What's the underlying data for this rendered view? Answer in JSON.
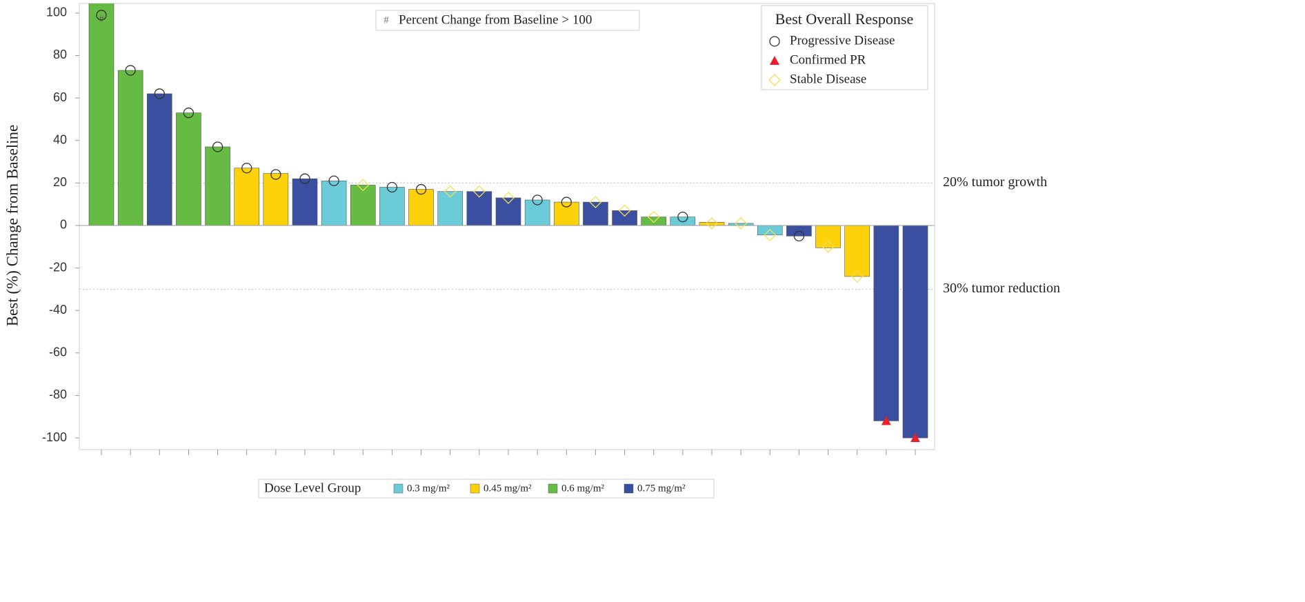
{
  "chart_data": {
    "type": "bar",
    "y_label": "Best (%) Change from Baseline",
    "ylim": [
      -105.5,
      104.5
    ],
    "yticks": [
      -100,
      -80,
      -60,
      -40,
      -20,
      0,
      20,
      40,
      60,
      80,
      100
    ],
    "categories": [
      null,
      null,
      null,
      null,
      null,
      null,
      null,
      null,
      null,
      null,
      null,
      null,
      null,
      null,
      null,
      null,
      null,
      null,
      null,
      null,
      null,
      null,
      null,
      null,
      null,
      null,
      null,
      null,
      null
    ],
    "legend_title": "Dose Level Group",
    "series": [
      {
        "name": "0.3 mg/m²",
        "color": "#6ccbd9",
        "values": [
          null,
          null,
          null,
          null,
          null,
          null,
          null,
          null,
          21,
          null,
          18,
          null,
          16,
          null,
          null,
          12,
          null,
          null,
          null,
          null,
          4,
          null,
          1,
          -4.5,
          null,
          null,
          null,
          null,
          null
        ]
      },
      {
        "name": "0.45 mg/m²",
        "color": "#fdd20a",
        "values": [
          null,
          null,
          null,
          null,
          null,
          27,
          24.5,
          null,
          null,
          null,
          null,
          17,
          null,
          null,
          null,
          null,
          11,
          null,
          null,
          null,
          null,
          1.5,
          null,
          null,
          null,
          -10.5,
          -24,
          null,
          null
        ]
      },
      {
        "name": "0.6 mg/m²",
        "color": "#66bb44",
        "values": [
          105,
          73,
          null,
          53,
          37,
          null,
          null,
          null,
          null,
          19,
          null,
          null,
          null,
          null,
          null,
          null,
          null,
          null,
          null,
          4,
          null,
          null,
          null,
          null,
          null,
          null,
          null,
          null,
          null
        ]
      },
      {
        "name": "0.75 mg/m²",
        "color": "#3a4fa0",
        "values": [
          null,
          null,
          62,
          null,
          null,
          null,
          null,
          22,
          null,
          null,
          null,
          null,
          null,
          16,
          13,
          null,
          null,
          11,
          7,
          null,
          null,
          null,
          null,
          null,
          -5,
          null,
          null,
          -92,
          -100
        ]
      }
    ],
    "response_legend_title": "Best Overall Response",
    "responses": [
      {
        "name": "Progressive Disease",
        "marker": "circle",
        "color": "#333333",
        "values": [
          99,
          73,
          62,
          53,
          37,
          27,
          24,
          22,
          21,
          null,
          18,
          17,
          null,
          null,
          null,
          12,
          11,
          null,
          null,
          null,
          4,
          null,
          null,
          null,
          -5,
          null,
          null,
          null,
          null
        ]
      },
      {
        "name": "Confirmed PR",
        "marker": "triangle",
        "color": "#e8202a",
        "values": [
          null,
          null,
          null,
          null,
          null,
          null,
          null,
          null,
          null,
          null,
          null,
          null,
          null,
          null,
          null,
          null,
          null,
          null,
          null,
          null,
          null,
          null,
          null,
          null,
          null,
          null,
          null,
          -92,
          -100
        ]
      },
      {
        "name": "Stable Disease",
        "marker": "diamond",
        "color": "#f5e050",
        "values": [
          null,
          null,
          null,
          null,
          null,
          null,
          null,
          null,
          null,
          19,
          null,
          null,
          16,
          16,
          13,
          null,
          null,
          11,
          7,
          4,
          null,
          1,
          1,
          -4.5,
          null,
          -10,
          -24,
          null,
          null
        ]
      }
    ],
    "over_limit": {
      "symbol": "#",
      "label": "Percent Change from Baseline > 100",
      "values": [
        97,
        null,
        null,
        null,
        null,
        null,
        null,
        null,
        null,
        null,
        null,
        null,
        null,
        null,
        null,
        null,
        null,
        null,
        null,
        null,
        null,
        null,
        null,
        null,
        null,
        null,
        null,
        null,
        null
      ]
    },
    "reference_lines": [
      {
        "value": 20,
        "label": "20% tumor growth"
      },
      {
        "value": -30,
        "label": "30% tumor reduction"
      }
    ]
  }
}
